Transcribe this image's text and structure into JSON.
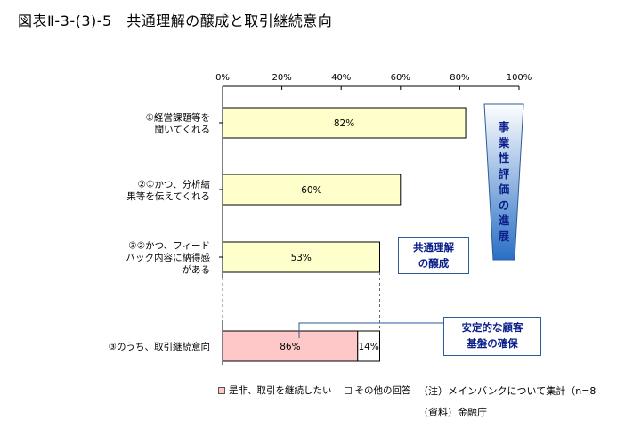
{
  "title": "図表Ⅱ-3-(3)-5　共通理解の醸成と取引継続意向",
  "chart_data": [
    {
      "type": "bar",
      "orientation": "horizontal",
      "categories": [
        "①経営課題等を\n聞いてくれる",
        "②①かつ、分析結\n果等を伝えてくれる",
        "③②かつ、フィード\nバック内容に納得感\nがある"
      ],
      "values": [
        82,
        60,
        53
      ],
      "value_labels": [
        "82%",
        "60%",
        "53%"
      ],
      "xlim": [
        0,
        100
      ],
      "x_ticks": [
        "0%",
        "20%",
        "40%",
        "60%",
        "80%",
        "100%"
      ],
      "bar_color": "#ffffcc"
    },
    {
      "type": "bar",
      "orientation": "horizontal",
      "stacked": true,
      "categories": [
        "③のうち、取引継続意向"
      ],
      "series": [
        {
          "name": "是非、取引を継続したい",
          "values": [
            86
          ],
          "label": "86%",
          "color": "#ffc8c8"
        },
        {
          "name": "その他の回答",
          "values": [
            14
          ],
          "label": "14%",
          "color": "#ffffff"
        }
      ],
      "scale_base": 53
    }
  ],
  "callouts": {
    "mutual_understanding": "共通理解\nの醸成",
    "stable_base": "安定的な顧客\n基盤の確保",
    "side_arrow": [
      "事",
      "業",
      "性",
      "評",
      "価",
      "の",
      "進",
      "展"
    ]
  },
  "notes": {
    "note": "（注）メインバンクについて集計（n=8",
    "source": "（資料）金融庁"
  },
  "colors": {
    "callout_text": "#0a1f8a",
    "callout_border": "#2e5a9a",
    "arrow_top": "#ffffff",
    "arrow_bottom": "#2a6fc4"
  }
}
